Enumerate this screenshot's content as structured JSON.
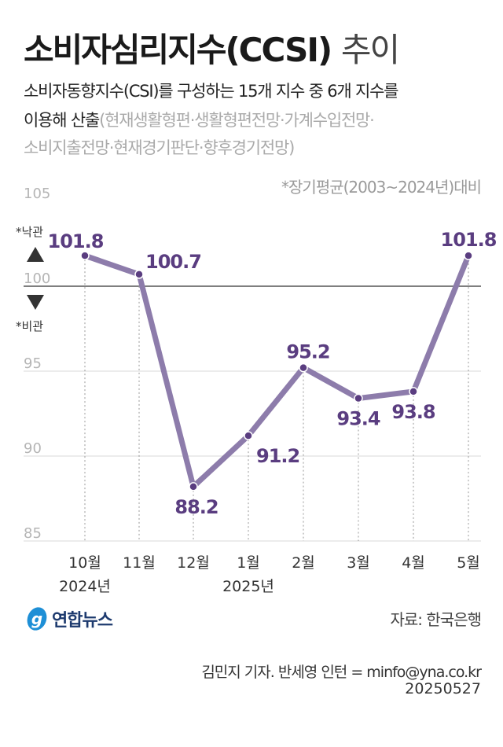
{
  "header": {
    "title_main": "소비자심리지수(CCSI)",
    "title_light": "추이",
    "subtitle_line1": "소비자동향지수(CSI)를 구성하는 15개 지수 중 6개 지수를",
    "subtitle_line2_dark": "이용해 산출",
    "subtitle_line2_gray": "(현재생활형편·생활형편전망·가계수입전망·",
    "subtitle_line3_gray": "소비지출전망·현재경기판단·향후경기전망)",
    "basis_note": "*장기평균(2003~2024년)대비"
  },
  "chart_data": {
    "type": "line",
    "categories": [
      "10월",
      "11월",
      "12월",
      "1월",
      "2월",
      "3월",
      "4월",
      "5월"
    ],
    "year_labels": [
      {
        "index": 0,
        "label": "2024년"
      },
      {
        "index": 3,
        "label": "2025년"
      }
    ],
    "values": [
      101.8,
      100.7,
      88.2,
      91.2,
      95.2,
      93.4,
      93.8,
      101.8
    ],
    "value_labels": [
      "101.8",
      "100.7",
      "88.2",
      "91.2",
      "95.2",
      "93.4",
      "93.8",
      "101.8"
    ],
    "y_ticks": [
      "105",
      "100",
      "95",
      "90",
      "85"
    ],
    "ylim": [
      85,
      105
    ],
    "reference_line": 100,
    "optimism_label": "*낙관",
    "pessimism_label": "*비관",
    "line_color": "#8d7cab",
    "label_color": "#5a3d80"
  },
  "footer": {
    "logo_text": "연합뉴스",
    "source": "자료: 한국은행",
    "credit": "김민지 기자. 반세영 인턴 = minfo@yna.co.kr",
    "date": "20250527"
  }
}
